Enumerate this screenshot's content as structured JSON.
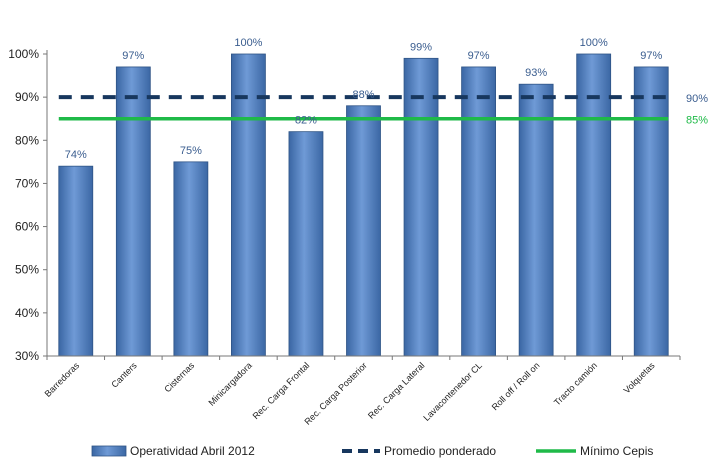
{
  "chart_data": {
    "type": "bar",
    "title": "",
    "xlabel": "",
    "ylabel": "",
    "ylim": [
      30,
      100
    ],
    "yticks": [
      "30%",
      "40%",
      "50%",
      "60%",
      "70%",
      "80%",
      "90%",
      "100%"
    ],
    "grid": false,
    "legend_position": "bottom",
    "categories": [
      "Barredoras",
      "Canters",
      "Cisternas",
      "Minicargadora",
      "Rec. Carga Frontal",
      "Rec. Carga Posterior",
      "Rec. Carga Lateral",
      "Lavacontenedor CL",
      "Roll off / Roll on",
      "Tracto camión",
      "Volquetas"
    ],
    "series": [
      {
        "name": "Operatividad Abril 2012",
        "kind": "bar",
        "color": "#4f81bd",
        "values": [
          74,
          97,
          75,
          100,
          82,
          88,
          99,
          97,
          93,
          100,
          97
        ],
        "labels": [
          "74%",
          "97%",
          "75%",
          "100%",
          "82%",
          "88%",
          "99%",
          "97%",
          "93%",
          "100%",
          "97%"
        ]
      },
      {
        "name": "Promedio ponderado",
        "kind": "dashed-line",
        "color": "#17375e",
        "value": 90,
        "label": "90%"
      },
      {
        "name": "Mínimo Cepis",
        "kind": "line",
        "color": "#1fba48",
        "value": 85,
        "label": "85%"
      }
    ]
  }
}
